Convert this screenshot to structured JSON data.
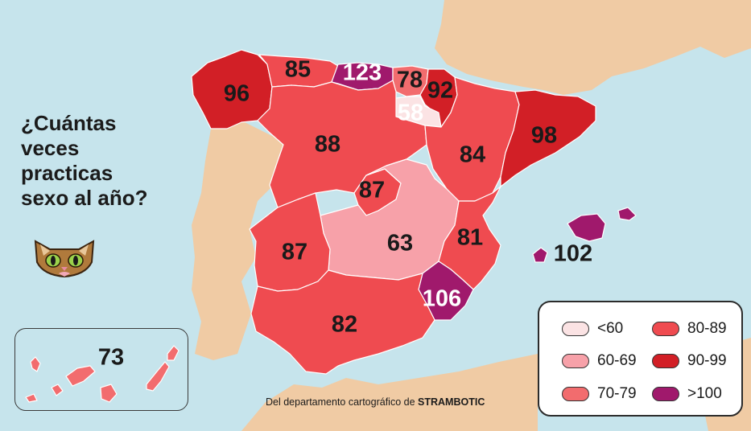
{
  "title_lines": [
    "¿Cuántas",
    "veces",
    "practicas",
    "sexo al año?"
  ],
  "credit": {
    "text": "Del departamento cartográfico de",
    "brand": "STRAMBOTIC"
  },
  "icon": "cat-face-icon",
  "colors": {
    "sea": "#c6e4ec",
    "foreign_land": "#f0cba4",
    "under_60": "#fbe3e4",
    "range_60_69": "#f7a1a9",
    "range_70_79": "#f26c6e",
    "range_80_89": "#ef4b50",
    "range_90_99": "#d21f26",
    "over_100": "#a0196c"
  },
  "regions": [
    {
      "id": "galicia",
      "value": "96",
      "bucket": "90-99"
    },
    {
      "id": "asturias",
      "value": "85",
      "bucket": "80-89"
    },
    {
      "id": "cantabria",
      "value": "123",
      "bucket": ">100"
    },
    {
      "id": "pais-vasco",
      "value": "78",
      "bucket": "70-79"
    },
    {
      "id": "navarra",
      "value": "92",
      "bucket": "90-99"
    },
    {
      "id": "la-rioja",
      "value": "58",
      "bucket": "<60"
    },
    {
      "id": "castilla-y-leon",
      "value": "88",
      "bucket": "80-89"
    },
    {
      "id": "aragon",
      "value": "84",
      "bucket": "80-89"
    },
    {
      "id": "cataluna",
      "value": "98",
      "bucket": "90-99"
    },
    {
      "id": "madrid",
      "value": "87",
      "bucket": "80-89"
    },
    {
      "id": "castilla-la-mancha",
      "value": "63",
      "bucket": "60-69"
    },
    {
      "id": "valencia",
      "value": "81",
      "bucket": "80-89"
    },
    {
      "id": "extremadura",
      "value": "87",
      "bucket": "80-89"
    },
    {
      "id": "murcia",
      "value": "106",
      "bucket": ">100"
    },
    {
      "id": "andalucia",
      "value": "82",
      "bucket": "80-89"
    },
    {
      "id": "baleares",
      "value": "102",
      "bucket": ">100"
    },
    {
      "id": "canarias",
      "value": "73",
      "bucket": "70-79"
    }
  ],
  "legend": [
    {
      "label": "<60",
      "color": "#fbe3e4"
    },
    {
      "label": "80-89",
      "color": "#ef4b50"
    },
    {
      "label": "60-69",
      "color": "#f7a1a9"
    },
    {
      "label": "90-99",
      "color": "#d21f26"
    },
    {
      "label": "70-79",
      "color": "#f26c6e"
    },
    {
      "label": ">100",
      "color": "#a0196c"
    }
  ]
}
